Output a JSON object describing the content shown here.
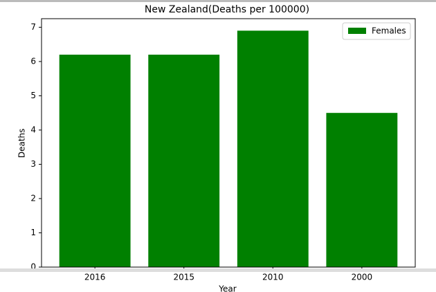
{
  "chart_data": {
    "type": "bar",
    "title": "New Zealand(Deaths per 100000)",
    "categories": [
      "2016",
      "2015",
      "2010",
      "2000"
    ],
    "values": [
      6.2,
      6.2,
      6.9,
      4.5
    ],
    "color": "#008000",
    "series_name": "Females",
    "legend": "upper right",
    "x_label": "Year",
    "y_label": "Deaths",
    "ylim": [
      0,
      7.25
    ],
    "yticks": [
      0,
      1,
      2,
      3,
      4,
      5,
      6,
      7
    ]
  }
}
